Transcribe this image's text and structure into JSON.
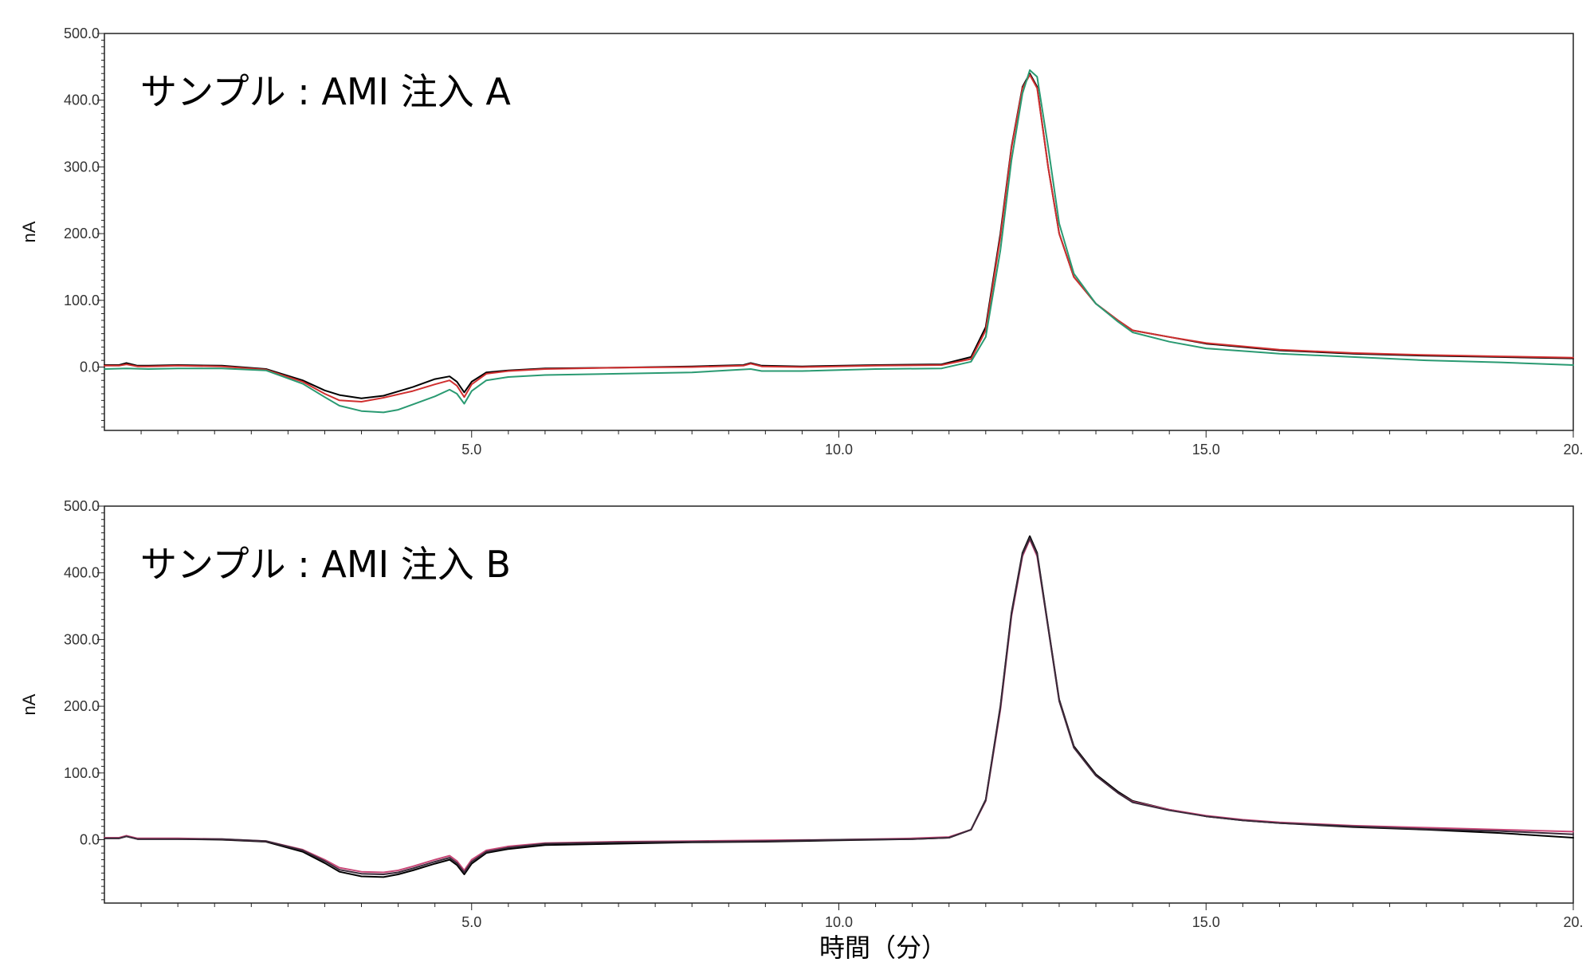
{
  "chart_data": [
    {
      "type": "line",
      "title": "サンプル : AMI 注入 A",
      "ylabel": "nA",
      "xlabel": "",
      "xlim": [
        0,
        20
      ],
      "ylim": [
        -95,
        500
      ],
      "xticks": [
        "5.0",
        "10.0",
        "15.0",
        "20."
      ],
      "yticks": [
        "500.0",
        "400.0",
        "300.0",
        "200.0",
        "100.0",
        "0.0"
      ],
      "series": [
        {
          "color": "#000000",
          "x": [
            0,
            0.2,
            0.3,
            0.45,
            0.6,
            1.0,
            1.6,
            2.2,
            2.7,
            3.0,
            3.2,
            3.5,
            3.8,
            4.2,
            4.5,
            4.7,
            4.8,
            4.9,
            5.0,
            5.2,
            5.5,
            6.0,
            7.0,
            8.0,
            8.7,
            8.8,
            8.95,
            9.5,
            10.5,
            11.4,
            11.8,
            12.0,
            12.2,
            12.35,
            12.5,
            12.6,
            12.7,
            12.85,
            13.0,
            13.2,
            13.5,
            13.8,
            14.0,
            14.5,
            15.0,
            15.5,
            16.0,
            17.0,
            18.0,
            19.0,
            20.0
          ],
          "y": [
            3,
            3,
            6,
            2,
            2,
            3,
            2,
            -3,
            -20,
            -35,
            -42,
            -47,
            -43,
            -30,
            -18,
            -14,
            -22,
            -38,
            -22,
            -8,
            -5,
            -2,
            -1,
            1,
            3,
            6,
            2,
            1,
            3,
            4,
            15,
            60,
            200,
            330,
            420,
            440,
            420,
            300,
            200,
            135,
            95,
            70,
            55,
            45,
            35,
            30,
            25,
            20,
            17,
            15,
            13
          ]
        },
        {
          "color": "#d03030",
          "x": [
            0,
            0.2,
            0.3,
            0.45,
            0.6,
            1.0,
            1.6,
            2.2,
            2.7,
            3.0,
            3.2,
            3.5,
            3.8,
            4.2,
            4.5,
            4.7,
            4.8,
            4.9,
            5.0,
            5.2,
            5.5,
            6.0,
            7.0,
            8.0,
            8.7,
            8.8,
            8.95,
            9.5,
            10.5,
            11.4,
            11.8,
            12.0,
            12.2,
            12.35,
            12.5,
            12.6,
            12.7,
            12.85,
            13.0,
            13.2,
            13.5,
            13.8,
            14.0,
            14.5,
            15.0,
            15.5,
            16.0,
            17.0,
            18.0,
            19.0,
            20.0
          ],
          "y": [
            2,
            2,
            4,
            1,
            1,
            2,
            1,
            -4,
            -22,
            -40,
            -50,
            -52,
            -46,
            -36,
            -26,
            -20,
            -28,
            -45,
            -26,
            -10,
            -6,
            -3,
            -1,
            0,
            2,
            5,
            1,
            0,
            2,
            3,
            12,
            55,
            195,
            328,
            418,
            438,
            418,
            300,
            200,
            135,
            95,
            70,
            55,
            45,
            36,
            31,
            26,
            21,
            18,
            16,
            14
          ]
        },
        {
          "color": "#2a9a72",
          "x": [
            0,
            0.3,
            0.6,
            1.0,
            1.6,
            2.2,
            2.7,
            3.0,
            3.2,
            3.5,
            3.8,
            4.0,
            4.2,
            4.5,
            4.7,
            4.8,
            4.9,
            5.0,
            5.2,
            5.5,
            6.0,
            7.0,
            8.0,
            8.8,
            8.95,
            9.5,
            10.5,
            11.4,
            11.8,
            12.0,
            12.2,
            12.35,
            12.5,
            12.6,
            12.7,
            12.85,
            13.0,
            13.2,
            13.5,
            13.8,
            14.0,
            14.5,
            15.0,
            15.5,
            16.0,
            17.0,
            18.0,
            19.0,
            20.0
          ],
          "y": [
            -3,
            -2,
            -3,
            -2,
            -2,
            -5,
            -25,
            -45,
            -58,
            -66,
            -68,
            -64,
            -56,
            -44,
            -34,
            -40,
            -55,
            -36,
            -20,
            -15,
            -12,
            -10,
            -8,
            -3,
            -6,
            -6,
            -3,
            -2,
            8,
            45,
            175,
            310,
            410,
            445,
            435,
            330,
            215,
            140,
            95,
            68,
            52,
            38,
            28,
            24,
            20,
            15,
            10,
            7,
            3
          ]
        }
      ]
    },
    {
      "type": "line",
      "title": "サンプル : AMI 注入 B",
      "ylabel": "nA",
      "xlabel": "時間（分）",
      "xlim": [
        0,
        20
      ],
      "ylim": [
        -95,
        500
      ],
      "xticks": [
        "5.0",
        "10.0",
        "15.0",
        "20."
      ],
      "yticks": [
        "500.0",
        "400.0",
        "300.0",
        "200.0",
        "100.0",
        "0.0"
      ],
      "series": [
        {
          "color": "#000000",
          "x": [
            0,
            0.2,
            0.3,
            0.45,
            0.6,
            1.0,
            1.6,
            2.2,
            2.7,
            3.0,
            3.2,
            3.5,
            3.8,
            4.0,
            4.2,
            4.5,
            4.7,
            4.8,
            4.9,
            5.0,
            5.2,
            5.5,
            6.0,
            7.0,
            8.0,
            9.0,
            10.0,
            11.0,
            11.5,
            11.8,
            12.0,
            12.2,
            12.35,
            12.5,
            12.6,
            12.7,
            12.85,
            13.0,
            13.2,
            13.5,
            13.8,
            14.0,
            14.5,
            15.0,
            15.5,
            16.0,
            17.0,
            18.0,
            19.0,
            20.0
          ],
          "y": [
            2,
            2,
            5,
            1,
            1,
            1,
            0,
            -3,
            -18,
            -35,
            -48,
            -55,
            -56,
            -52,
            -46,
            -36,
            -30,
            -38,
            -52,
            -36,
            -20,
            -14,
            -8,
            -6,
            -4,
            -3,
            -1,
            1,
            3,
            15,
            60,
            200,
            340,
            430,
            455,
            430,
            320,
            210,
            140,
            98,
            72,
            58,
            45,
            35,
            29,
            25,
            19,
            15,
            10,
            3
          ]
        },
        {
          "color": "#c84878",
          "x": [
            0,
            0.2,
            0.3,
            0.45,
            0.6,
            1.0,
            1.6,
            2.2,
            2.7,
            3.0,
            3.2,
            3.5,
            3.8,
            4.0,
            4.2,
            4.5,
            4.7,
            4.8,
            4.9,
            5.0,
            5.2,
            5.5,
            6.0,
            7.0,
            8.0,
            9.0,
            10.0,
            11.0,
            11.5,
            11.8,
            12.0,
            12.2,
            12.35,
            12.5,
            12.6,
            12.7,
            12.85,
            13.0,
            13.2,
            13.5,
            13.8,
            14.0,
            14.5,
            15.0,
            15.5,
            16.0,
            17.0,
            18.0,
            19.0,
            20.0
          ],
          "y": [
            3,
            3,
            6,
            2,
            2,
            2,
            1,
            -2,
            -15,
            -30,
            -42,
            -48,
            -49,
            -46,
            -40,
            -30,
            -24,
            -32,
            -46,
            -30,
            -16,
            -10,
            -5,
            -3,
            -2,
            -1,
            0,
            2,
            4,
            15,
            58,
            195,
            335,
            425,
            450,
            425,
            318,
            208,
            138,
            96,
            70,
            57,
            45,
            36,
            30,
            26,
            21,
            18,
            15,
            12
          ]
        },
        {
          "color": "#3a2a3a",
          "x": [
            0,
            0.2,
            0.3,
            0.45,
            0.6,
            1.0,
            1.6,
            2.2,
            2.7,
            3.0,
            3.2,
            3.5,
            3.8,
            4.0,
            4.2,
            4.5,
            4.7,
            4.8,
            4.9,
            5.0,
            5.2,
            5.5,
            6.0,
            7.0,
            8.0,
            9.0,
            10.0,
            11.0,
            11.5,
            11.8,
            12.0,
            12.2,
            12.35,
            12.5,
            12.6,
            12.7,
            12.85,
            13.0,
            13.2,
            13.5,
            13.8,
            14.0,
            14.5,
            15.0,
            15.5,
            16.0,
            17.0,
            18.0,
            19.0,
            20.0
          ],
          "y": [
            2,
            2,
            5,
            1,
            1,
            1,
            1,
            -2,
            -16,
            -32,
            -45,
            -51,
            -52,
            -49,
            -43,
            -33,
            -27,
            -35,
            -49,
            -33,
            -18,
            -12,
            -6,
            -4,
            -3,
            -2,
            0,
            1,
            3,
            15,
            59,
            198,
            338,
            428,
            452,
            428,
            318,
            208,
            138,
            96,
            70,
            56,
            44,
            35,
            29,
            25,
            20,
            16,
            13,
            8
          ]
        }
      ]
    }
  ]
}
